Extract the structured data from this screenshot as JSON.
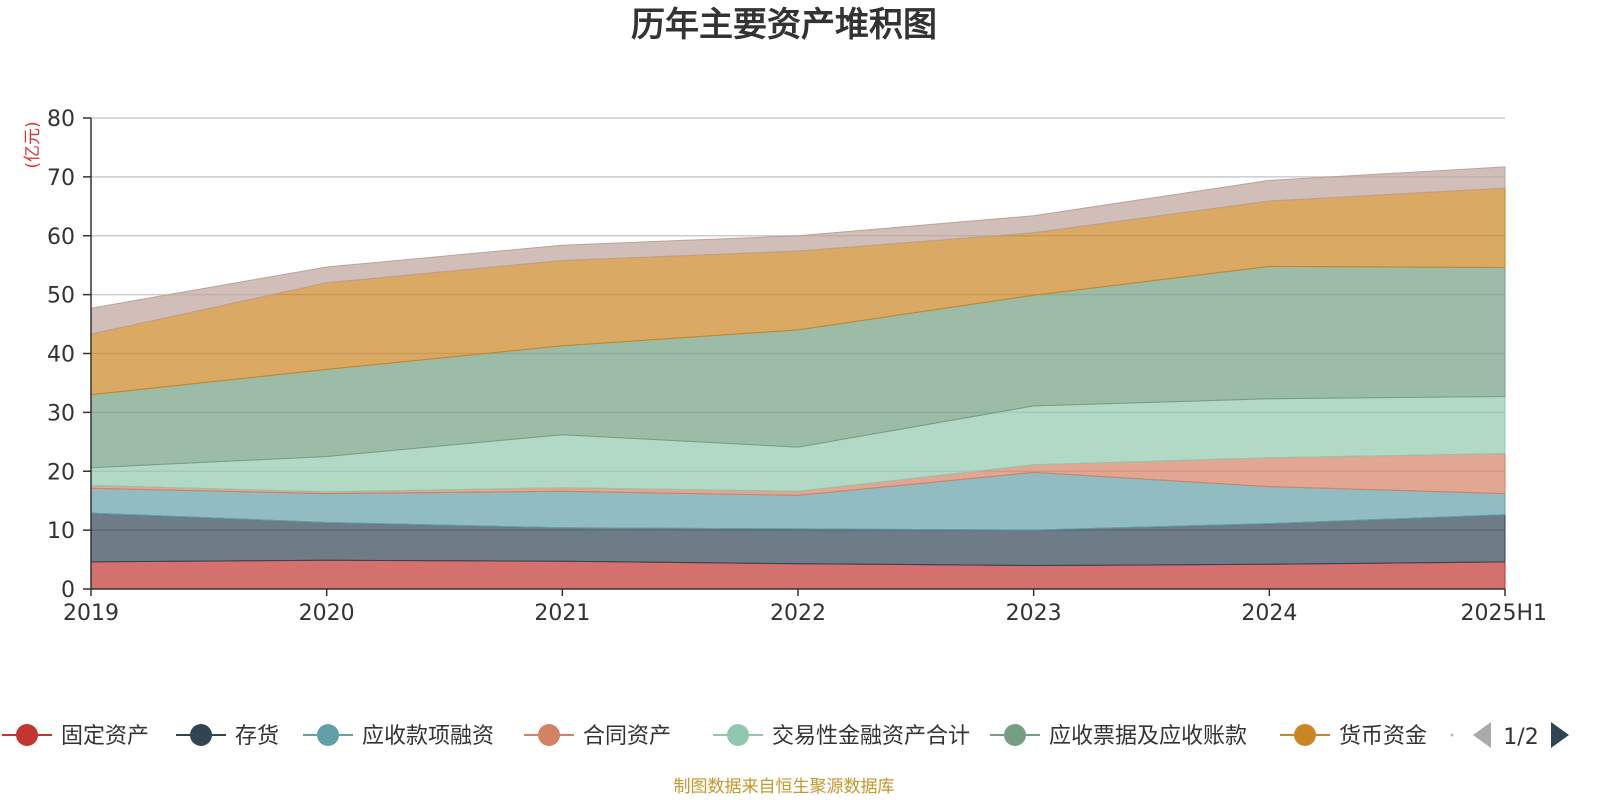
{
  "chart_data": {
    "type": "area",
    "stacked": true,
    "title": "历年主要资产堆积图",
    "ylabel": "(亿元)",
    "ylim": [
      0,
      80
    ],
    "yticks": [
      "0",
      "10",
      "20",
      "30",
      "40",
      "50",
      "60",
      "70",
      "80"
    ],
    "grid": true,
    "legend_position": "bottom",
    "categories": [
      "2019",
      "2020",
      "2021",
      "2022",
      "2023",
      "2024",
      "2025H1"
    ],
    "series": [
      {
        "name": "固定资产",
        "color": "#c23531",
        "values": [
          4.6,
          4.9,
          4.7,
          4.3,
          4.0,
          4.2,
          4.6
        ]
      },
      {
        "name": "存货",
        "color": "#2f4554",
        "values": [
          8.3,
          6.4,
          5.7,
          5.9,
          6.0,
          6.9,
          8.0
        ]
      },
      {
        "name": "应收款项融资",
        "color": "#61a0a8",
        "values": [
          4.2,
          4.9,
          6.2,
          5.7,
          9.8,
          6.3,
          3.6
        ]
      },
      {
        "name": "合同资产",
        "color": "#d48265",
        "values": [
          0.5,
          0.3,
          0.6,
          0.7,
          1.3,
          4.9,
          6.8
        ]
      },
      {
        "name": "交易性金融资产合计",
        "color": "#91c7ae",
        "values": [
          3.0,
          6.0,
          9.0,
          7.5,
          10.0,
          10.0,
          9.7
        ]
      },
      {
        "name": "应收票据及应收账款",
        "color": "#749f83",
        "values": [
          12.4,
          14.8,
          15.1,
          19.9,
          18.8,
          22.5,
          21.9
        ]
      },
      {
        "name": "货币资金",
        "color": "#ca8622",
        "values": [
          10.3,
          14.7,
          14.5,
          13.4,
          10.6,
          11.1,
          13.5
        ]
      },
      {
        "name": "",
        "color": "#bda29a",
        "values": [
          4.4,
          2.7,
          2.6,
          2.6,
          2.9,
          3.5,
          3.6
        ]
      }
    ],
    "legend_page": "1/2"
  },
  "footer": {
    "source": "制图数据来自恒生聚源数据库"
  }
}
